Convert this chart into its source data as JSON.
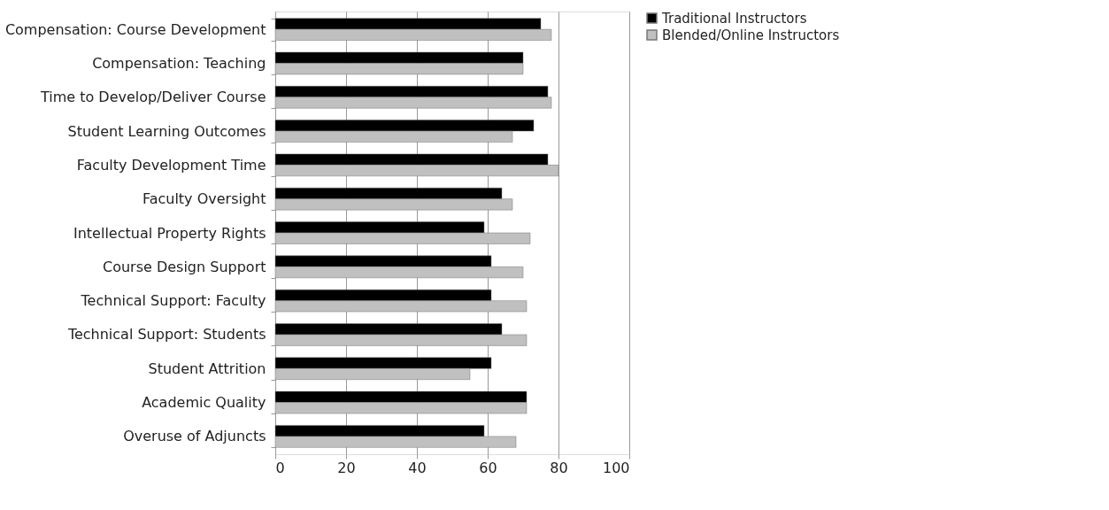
{
  "chart_data": {
    "type": "bar",
    "orientation": "horizontal",
    "categories": [
      "Compensation: Course Development",
      "Compensation: Teaching",
      "Time to Develop/Deliver Course",
      "Student Learning Outcomes",
      "Faculty Development Time",
      "Faculty Oversight",
      "Intellectual Property Rights",
      "Course Design Support",
      "Technical Support: Faculty",
      "Technical Support: Students",
      "Student Attrition",
      "Academic Quality",
      "Overuse of Adjuncts"
    ],
    "series": [
      {
        "name": "Traditional Instructors",
        "color": "#000000",
        "values": [
          75,
          70,
          77,
          73,
          77,
          64,
          59,
          61,
          61,
          64,
          61,
          71,
          59
        ]
      },
      {
        "name": "Blended/Online Instructors",
        "color": "#c0c0c0",
        "values": [
          78,
          70,
          78,
          67,
          80,
          67,
          72,
          70,
          71,
          71,
          55,
          71,
          68
        ]
      }
    ],
    "xlim": [
      0,
      100
    ],
    "xticks": [
      0,
      20,
      40,
      60,
      80,
      100
    ],
    "grid": "x",
    "legend": "right"
  }
}
